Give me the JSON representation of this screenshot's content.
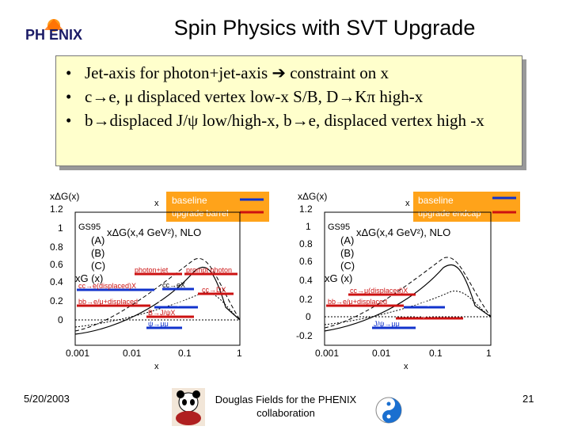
{
  "header": {
    "title": "Spin Physics with SVT Upgrade",
    "logo_text": "PH ENIX"
  },
  "bullets": [
    "Jet-axis for photon+jet-axis ➔ constraint on x",
    "c→e, μ displaced vertex low-x S/B, D→Kπ high-x",
    "b→displaced J/ψ low/high-x, b→e, displaced vertex high -x"
  ],
  "left_plot": {
    "ylabel": "xΔG(x)",
    "xlabel": "x",
    "yticks": [
      "1.2",
      "1",
      "0.8",
      "0.6",
      "0.4",
      "0.2",
      "0"
    ],
    "xticks": [
      "0.001",
      "0.01",
      "0.1",
      "1"
    ],
    "legend": {
      "baseline": "baseline",
      "upgrade": "upgrade barrel"
    },
    "model_labels": [
      "GS95",
      "(A)",
      "(B)",
      "(C)",
      "xG (x)"
    ],
    "func_label": "xΔG(x,4 GeV²), NLO",
    "process_labels": [
      "photon+jet",
      "prompt photon",
      "cc→e(displaced)X",
      "cc→eX",
      "cc→μX",
      "cc→DX",
      "bb→e/μ+displaced",
      "bb→eμX",
      "B→J/ψX",
      "ψ→μμ"
    ]
  },
  "right_plot": {
    "ylabel": "xΔG(x)",
    "xlabel": "x",
    "yticks": [
      "1.2",
      "1",
      "0.8",
      "0.6",
      "0.4",
      "0.2",
      "0",
      "-0.2"
    ],
    "xticks": [
      "0.001",
      "0.01",
      "0.1",
      "1"
    ],
    "legend": {
      "baseline": "baseline",
      "upgrade": "upgrade endcap"
    },
    "model_labels": [
      "GS95",
      "(A)",
      "(B)",
      "(C)",
      "xG (x)"
    ],
    "func_label": "xΔG(x,4 GeV²), NLO",
    "process_labels": [
      "cc→μ(displaced)X",
      "bb→e/μ+displaced",
      "bb→eμX",
      "B→J/ψX",
      "J/ψ→μμ"
    ]
  },
  "footer": {
    "date": "5/20/2003",
    "credit": "Douglas Fields for the PHENIX collaboration",
    "page": "21"
  },
  "colors": {
    "baseline": "#1133cc",
    "upgrade": "#cc1111",
    "legend_bg": "#ffa31a",
    "box_bg": "#ffffcc",
    "process_text": "#cc1111"
  }
}
